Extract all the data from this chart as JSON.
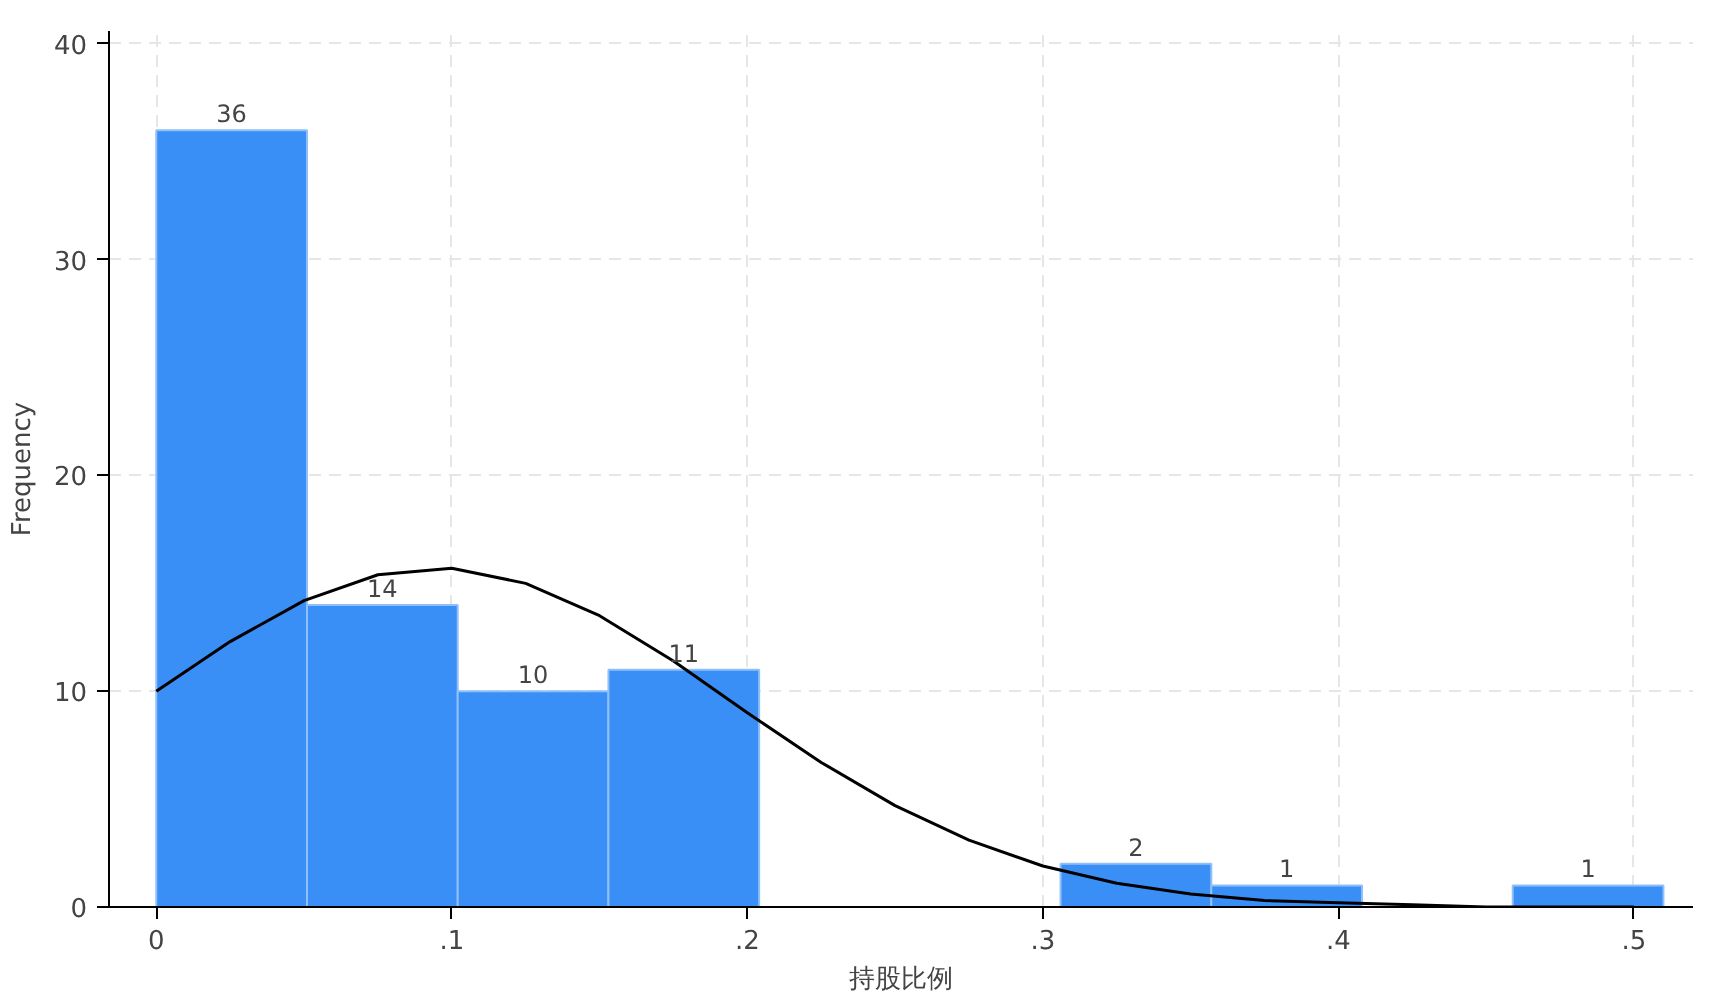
{
  "chart_data": {
    "type": "histogram",
    "xlabel": "持股比例",
    "ylabel": "Frequency",
    "bins": [
      0,
      0.051,
      0.102,
      0.153,
      0.204,
      0.255,
      0.306,
      0.357,
      0.408,
      0.459,
      0.51
    ],
    "values": [
      36,
      14,
      10,
      11,
      0,
      0,
      2,
      1,
      0,
      1
    ],
    "value_labels": [
      "36",
      "14",
      "10",
      "11",
      null,
      null,
      "2",
      "1",
      null,
      "1"
    ],
    "color": "#3a8ff7",
    "series": [
      {
        "type": "line",
        "color": "#000000",
        "x": [
          0,
          0.025,
          0.05,
          0.075,
          0.1,
          0.125,
          0.15,
          0.175,
          0.2,
          0.225,
          0.25,
          0.275,
          0.3,
          0.325,
          0.35,
          0.375,
          0.4,
          0.425,
          0.45,
          0.475,
          0.5
        ],
        "values": [
          10.0,
          12.3,
          14.2,
          15.4,
          15.7,
          15.0,
          13.5,
          11.4,
          9.0,
          6.7,
          4.7,
          3.1,
          1.9,
          1.1,
          0.6,
          0.3,
          0.2,
          0.1,
          0,
          0,
          0
        ]
      }
    ],
    "xlim": [
      -0.016,
      0.52
    ],
    "ylim": [
      0,
      40.6
    ],
    "xticks": [
      0,
      {
        "value": 0.1,
        "label": ".1"
      },
      {
        "value": 0.2,
        "label": ".2"
      },
      {
        "value": 0.3,
        "label": ".3"
      },
      {
        "value": 0.4,
        "label": ".4"
      },
      {
        "value": 0.5,
        "label": ".5"
      }
    ],
    "yticks": [
      0,
      10,
      20,
      30,
      40
    ],
    "grid": true
  }
}
